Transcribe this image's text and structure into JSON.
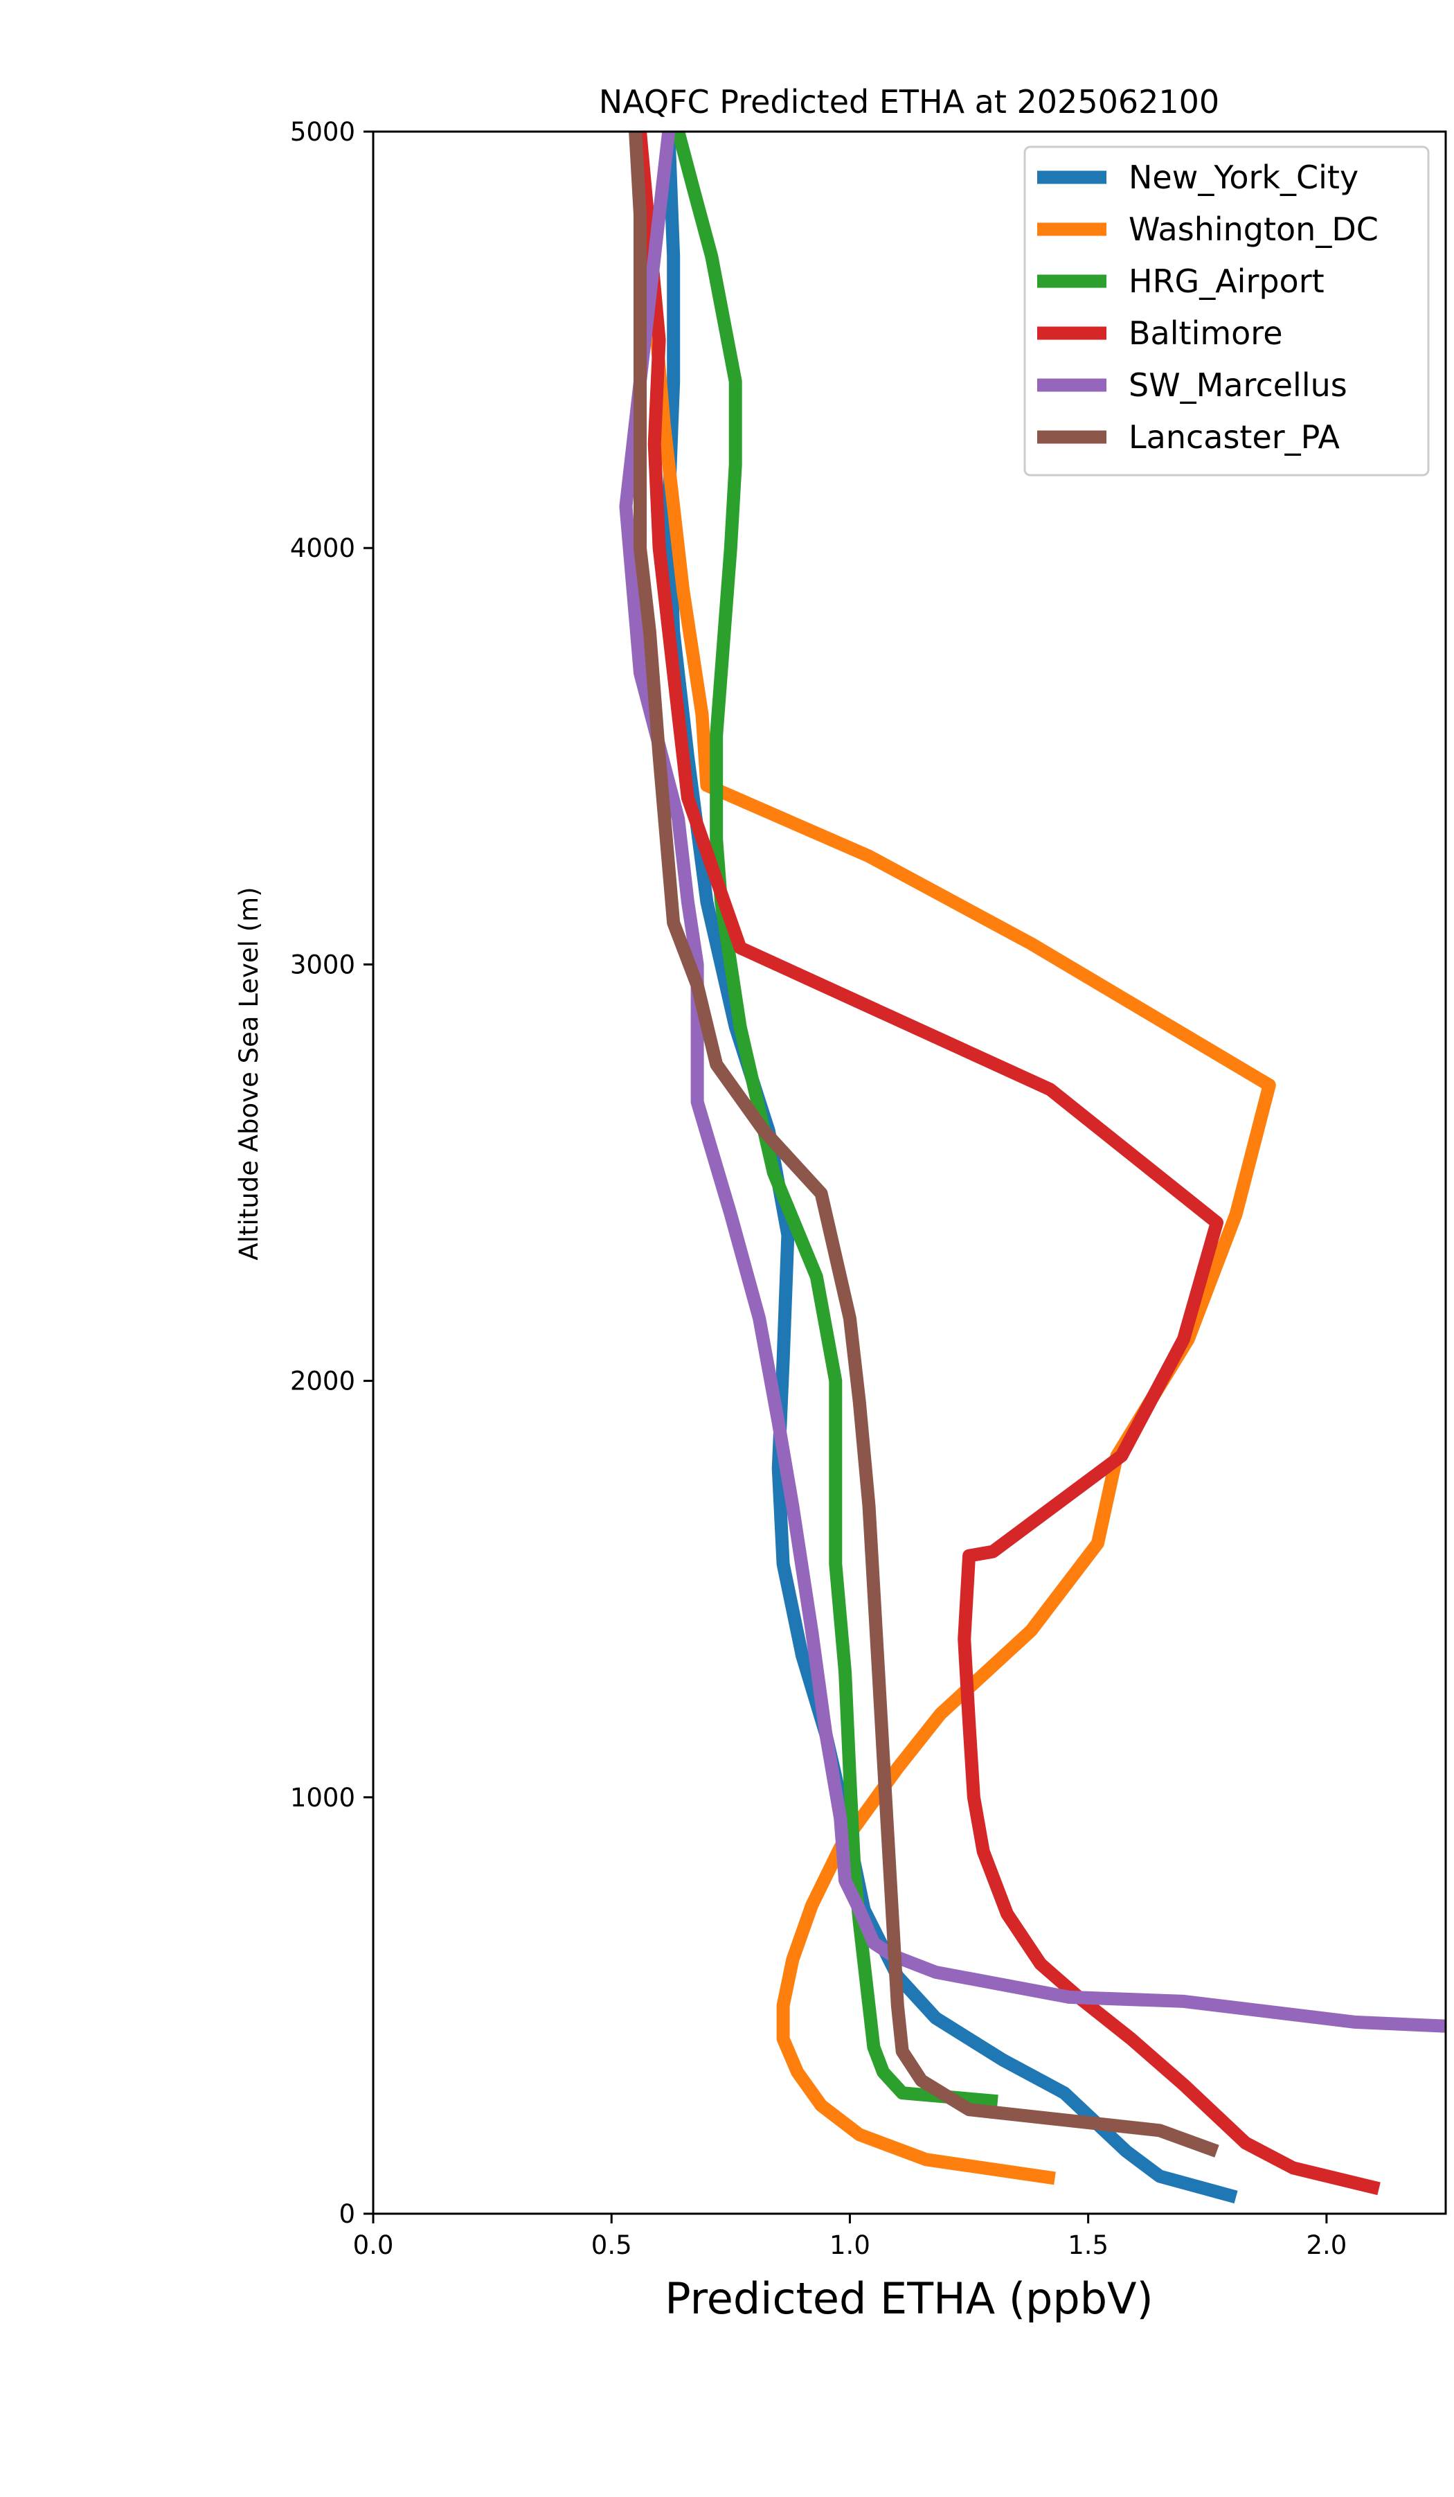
{
  "chart_data": {
    "type": "line",
    "title": "NAQFC Predicted ETHA at 2025062100",
    "xlabel": "Predicted ETHA (ppbV)",
    "ylabel": "Altitude Above Sea Level (m)",
    "xlim": [
      0,
      2.25
    ],
    "ylim": [
      0,
      5000
    ],
    "xticks": [
      0.0,
      0.5,
      1.0,
      1.5,
      2.0
    ],
    "xtick_labels": [
      "0.0",
      "0.5",
      "1.0",
      "1.5",
      "2.0"
    ],
    "yticks": [
      0,
      1000,
      2000,
      3000,
      4000,
      5000
    ],
    "ytick_labels": [
      "0",
      "1000",
      "2000",
      "3000",
      "4000",
      "5000"
    ],
    "grid": false,
    "legend_position": "top-right",
    "series": [
      {
        "name": "New_York_City",
        "color": "#1f77b4",
        "x": [
          1.81,
          1.65,
          1.58,
          1.45,
          1.32,
          1.18,
          1.1,
          1.03,
          0.99,
          0.95,
          0.9,
          0.86,
          0.85,
          0.86,
          0.87,
          0.83,
          0.76,
          0.7,
          0.66,
          0.63,
          0.62,
          0.63,
          0.63,
          0.62
        ],
        "y": [
          40,
          90,
          150,
          290,
          370,
          470,
          570,
          730,
          950,
          1150,
          1340,
          1560,
          1790,
          2050,
          2350,
          2600,
          2850,
          3150,
          3500,
          3800,
          4100,
          4400,
          4700,
          5000
        ]
      },
      {
        "name": "Washington_DC",
        "color": "#ff7f0e",
        "x": [
          1.43,
          1.16,
          1.02,
          0.94,
          0.89,
          0.86,
          0.86,
          0.88,
          0.92,
          0.98,
          1.1,
          1.19,
          1.38,
          1.52,
          1.56,
          1.71,
          1.81,
          1.88,
          1.38,
          1.04,
          0.7,
          0.69,
          0.65,
          0.61,
          0.58,
          0.56
        ],
        "y": [
          85,
          130,
          190,
          260,
          340,
          420,
          500,
          610,
          740,
          880,
          1070,
          1200,
          1400,
          1610,
          1820,
          2100,
          2400,
          2710,
          3050,
          3260,
          3430,
          3600,
          3900,
          4300,
          4700,
          5000
        ]
      },
      {
        "name": "HRG_Airport",
        "color": "#2ca02c",
        "x": [
          1.31,
          1.11,
          1.07,
          1.05,
          1.04,
          1.03,
          1.02,
          1.01,
          1.0,
          0.99,
          0.97,
          0.97,
          0.93,
          0.84,
          0.77,
          0.73,
          0.72,
          0.72,
          0.75,
          0.76,
          0.76,
          0.71,
          0.67,
          0.64
        ],
        "y": [
          270,
          290,
          340,
          400,
          500,
          600,
          700,
          820,
          1050,
          1300,
          1560,
          2000,
          2250,
          2500,
          2850,
          3150,
          3300,
          3550,
          4000,
          4200,
          4400,
          4700,
          4870,
          5000
        ]
      },
      {
        "name": "Baltimore",
        "color": "#d62728",
        "x": [
          2.11,
          1.93,
          1.83,
          1.7,
          1.59,
          1.48,
          1.4,
          1.33,
          1.28,
          1.26,
          1.25,
          1.24,
          1.25,
          1.3,
          1.57,
          1.7,
          1.77,
          1.42,
          0.77,
          0.66,
          0.62,
          0.6,
          0.59,
          0.6,
          0.58,
          0.56
        ],
        "y": [
          60,
          110,
          170,
          310,
          420,
          520,
          600,
          720,
          870,
          1000,
          1180,
          1380,
          1580,
          1590,
          1820,
          2100,
          2380,
          2700,
          3040,
          3400,
          3800,
          4000,
          4250,
          4500,
          4750,
          5000
        ]
      },
      {
        "name": "SW_Marcellus",
        "color": "#9467bd",
        "x": [
          2.26,
          2.06,
          1.7,
          1.46,
          1.18,
          1.09,
          1.05,
          1.02,
          0.99,
          0.98,
          0.95,
          0.92,
          0.88,
          0.85,
          0.81,
          0.75,
          0.68,
          0.68,
          0.68,
          0.66,
          0.64,
          0.56,
          0.53,
          0.56,
          0.59,
          0.62
        ],
        "y": [
          450,
          460,
          510,
          520,
          580,
          620,
          650,
          730,
          800,
          950,
          1150,
          1400,
          1700,
          1900,
          2150,
          2400,
          2670,
          2900,
          3000,
          3150,
          3350,
          3700,
          4100,
          4400,
          4700,
          5000
        ]
      },
      {
        "name": "Lancaster_PA",
        "color": "#8c564b",
        "x": [
          1.77,
          1.65,
          1.25,
          1.15,
          1.11,
          1.1,
          1.09,
          1.08,
          1.07,
          1.06,
          1.05,
          1.04,
          1.02,
          1.0,
          0.94,
          0.82,
          0.72,
          0.68,
          0.63,
          0.6,
          0.58,
          0.56,
          0.56,
          0.56,
          0.56,
          0.55
        ],
        "y": [
          150,
          200,
          250,
          320,
          390,
          500,
          700,
          900,
          1100,
          1300,
          1500,
          1700,
          1950,
          2150,
          2450,
          2600,
          2760,
          2950,
          3100,
          3500,
          3800,
          4000,
          4300,
          4600,
          4800,
          5000
        ]
      }
    ]
  }
}
